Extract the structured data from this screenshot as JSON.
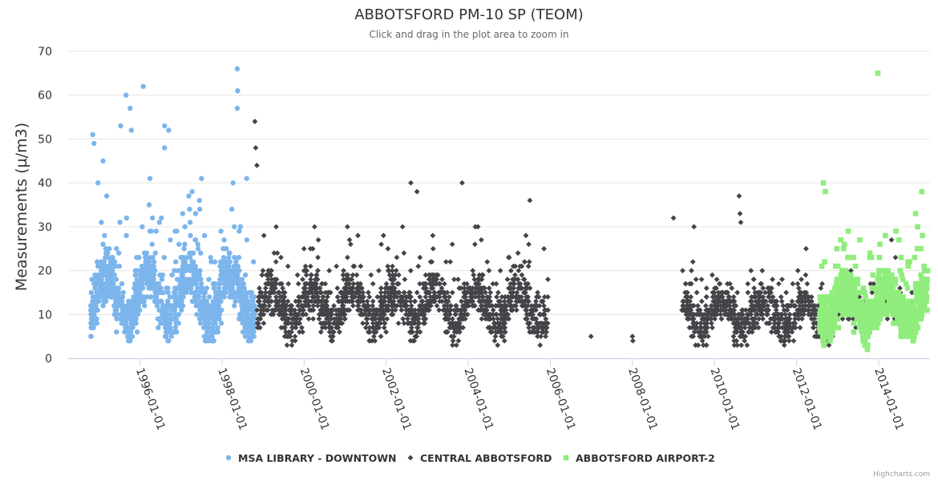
{
  "chart_data": {
    "type": "scatter",
    "title": "ABBOTSFORD PM-10 SP (TEOM)",
    "subtitle": "Click and drag in the plot area to zoom in",
    "ylabel": "Measurements (µ/m3)",
    "xlabel": "",
    "ylim": [
      0,
      70
    ],
    "yticks": [
      0,
      10,
      20,
      30,
      40,
      50,
      60,
      70
    ],
    "xlim": [
      1994.25,
      2015.25
    ],
    "xticks": [
      {
        "value": 1996,
        "label": "1996-01-01"
      },
      {
        "value": 1998,
        "label": "1998-01-01"
      },
      {
        "value": 2000,
        "label": "2000-01-01"
      },
      {
        "value": 2002,
        "label": "2002-01-01"
      },
      {
        "value": 2004,
        "label": "2004-01-01"
      },
      {
        "value": 2006,
        "label": "2006-01-01"
      },
      {
        "value": 2008,
        "label": "2008-01-01"
      },
      {
        "value": 2010,
        "label": "2010-01-01"
      },
      {
        "value": 2012,
        "label": "2012-01-01"
      },
      {
        "value": 2014,
        "label": "2014-01-01"
      }
    ],
    "grid": true,
    "legend_position": "bottom-center",
    "credits": "Highcharts.com",
    "series": [
      {
        "name": "MSA LIBRARY - DOWNTOWN",
        "color": "#7cb5ec",
        "marker": "circle",
        "generated": {
          "start": 1994.8,
          "end": 1998.8,
          "count": 1150,
          "seed": 11,
          "minValue": 4,
          "median": 14,
          "spread": 6,
          "peakBoost": 9,
          "maxValue": 66
        },
        "outliers": [
          {
            "x": 1995.53,
            "y": 53
          },
          {
            "x": 1995.66,
            "y": 60
          },
          {
            "x": 1995.76,
            "y": 57
          },
          {
            "x": 1995.79,
            "y": 52
          },
          {
            "x": 1996.08,
            "y": 62
          },
          {
            "x": 1996.6,
            "y": 53
          },
          {
            "x": 1996.7,
            "y": 52
          },
          {
            "x": 1996.6,
            "y": 48
          },
          {
            "x": 1997.5,
            "y": 41
          },
          {
            "x": 1998.37,
            "y": 66
          },
          {
            "x": 1998.38,
            "y": 61
          },
          {
            "x": 1998.37,
            "y": 57
          },
          {
            "x": 1994.85,
            "y": 51
          },
          {
            "x": 1994.88,
            "y": 49
          },
          {
            "x": 1995.1,
            "y": 45
          },
          {
            "x": 1998.6,
            "y": 41
          }
        ]
      },
      {
        "name": "CENTRAL ABBOTSFORD",
        "color": "#434348",
        "marker": "diamond",
        "generated": [
          {
            "start": 1998.85,
            "end": 2005.95,
            "count": 1550,
            "seed": 23,
            "minValue": 2,
            "median": 12,
            "spread": 5,
            "peakBoost": 6,
            "maxValue": 40
          },
          {
            "start": 2009.2,
            "end": 2012.9,
            "count": 780,
            "seed": 37,
            "minValue": 3,
            "median": 10,
            "spread": 4.5,
            "peakBoost": 5,
            "maxValue": 37
          },
          {
            "start": 2013.0,
            "end": 2015.1,
            "count": 160,
            "seed": 41,
            "minValue": 2,
            "median": 12,
            "spread": 5,
            "peakBoost": 4,
            "maxValue": 31
          }
        ],
        "outliers": [
          {
            "x": 1998.8,
            "y": 54
          },
          {
            "x": 1998.82,
            "y": 48
          },
          {
            "x": 1998.85,
            "y": 44
          },
          {
            "x": 2002.6,
            "y": 40
          },
          {
            "x": 2002.75,
            "y": 38
          },
          {
            "x": 2003.85,
            "y": 40
          },
          {
            "x": 2005.5,
            "y": 36
          },
          {
            "x": 2006.99,
            "y": 5
          },
          {
            "x": 2008.0,
            "y": 5
          },
          {
            "x": 2008.01,
            "y": 4
          },
          {
            "x": 2010.6,
            "y": 37
          },
          {
            "x": 2010.62,
            "y": 33
          },
          {
            "x": 2010.64,
            "y": 31
          },
          {
            "x": 2009.0,
            "y": 32
          },
          {
            "x": 2009.5,
            "y": 30
          }
        ]
      },
      {
        "name": "ABBOTSFORD AIRPORT-2",
        "color": "#90ed7d",
        "marker": "square",
        "generated": {
          "start": 2012.55,
          "end": 2015.2,
          "count": 1000,
          "seed": 53,
          "minValue": 2,
          "median": 12,
          "spread": 5,
          "peakBoost": 6,
          "maxValue": 40
        },
        "outliers": [
          {
            "x": 2013.98,
            "y": 65
          },
          {
            "x": 2012.65,
            "y": 40
          },
          {
            "x": 2012.7,
            "y": 38
          },
          {
            "x": 2015.05,
            "y": 38
          },
          {
            "x": 2014.9,
            "y": 33
          },
          {
            "x": 2014.95,
            "y": 30
          }
        ]
      }
    ]
  }
}
